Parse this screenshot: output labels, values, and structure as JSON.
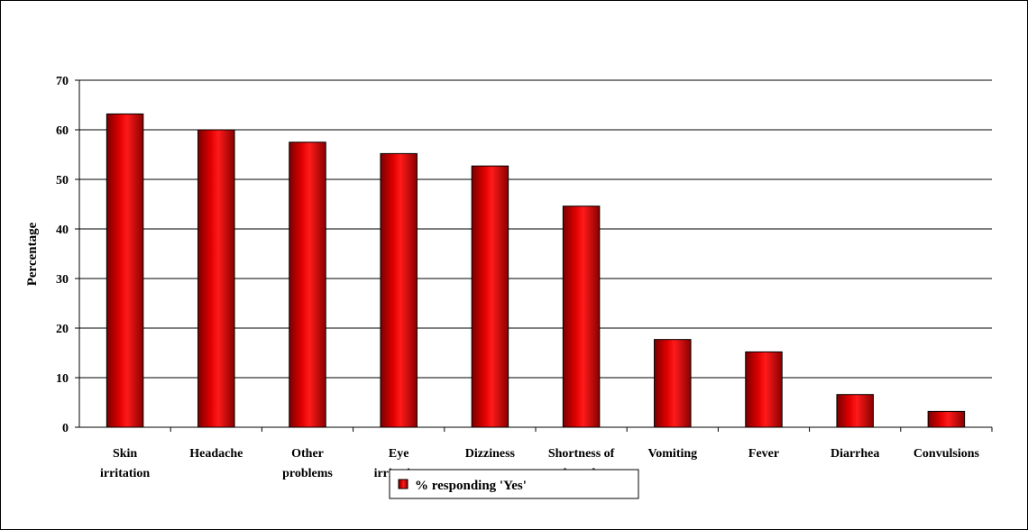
{
  "chart_data": {
    "type": "bar",
    "title": "",
    "xlabel": "",
    "ylabel": "Percentage",
    "ylim": [
      0,
      70
    ],
    "yticks": [
      "0",
      "10",
      "20",
      "30",
      "40",
      "50",
      "60",
      "70"
    ],
    "grid": true,
    "legend_position": "bottom-center",
    "categories": [
      [
        "Skin",
        "irritation"
      ],
      [
        "Headache"
      ],
      [
        "Other",
        "problems"
      ],
      [
        "Eye",
        "irritation"
      ],
      [
        "Dizziness"
      ],
      [
        "Shortness of",
        "breath"
      ],
      [
        "Vomiting"
      ],
      [
        "Fever"
      ],
      [
        "Diarrhea"
      ],
      [
        "Convulsions"
      ]
    ],
    "series": [
      {
        "name": "% responding 'Yes'",
        "color": "#cc0000",
        "values": [
          63.2,
          60,
          57.5,
          55.2,
          52.7,
          44.6,
          17.7,
          15.2,
          6.6,
          3.2
        ]
      }
    ]
  }
}
